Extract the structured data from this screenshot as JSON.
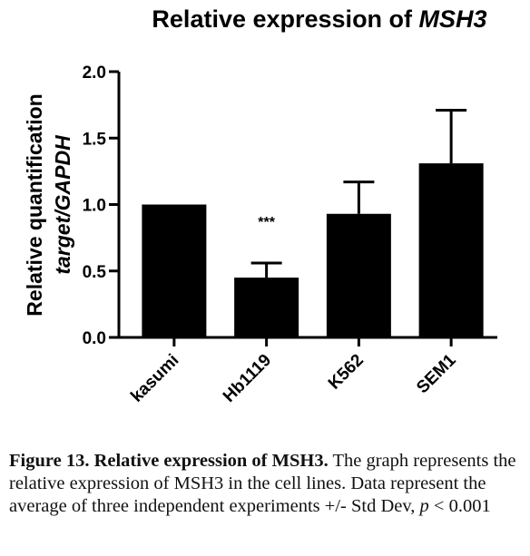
{
  "chart_data": {
    "type": "bar",
    "title_prefix": "Relative expression of ",
    "title_gene": "MSH3",
    "ylabel_line1": "Relative quantification",
    "ylabel_line2": "target/GAPDH",
    "xlabel": "",
    "categories": [
      "kasumi",
      "Hb1119",
      "K562",
      "SEM1"
    ],
    "values": [
      1.0,
      0.45,
      0.93,
      1.31
    ],
    "errors": [
      0.0,
      0.11,
      0.24,
      0.4
    ],
    "ylim": [
      0.0,
      2.0
    ],
    "yticks": [
      "0.0",
      "0.5",
      "1.0",
      "1.5",
      "2.0"
    ],
    "annotations": [
      {
        "category": "Hb1119",
        "text": "***"
      }
    ],
    "bar_color": "#000000",
    "grid": false,
    "legend": "none"
  },
  "caption": {
    "figure_label": "Figure 13. Relative expression of MSH3.",
    "text": " The graph represents the relative expression of MSH3 in the cell lines. Data represent the average of three independent experiments +/- Std Dev, ",
    "p_symbol": "p",
    "p_value": " < 0.001"
  }
}
